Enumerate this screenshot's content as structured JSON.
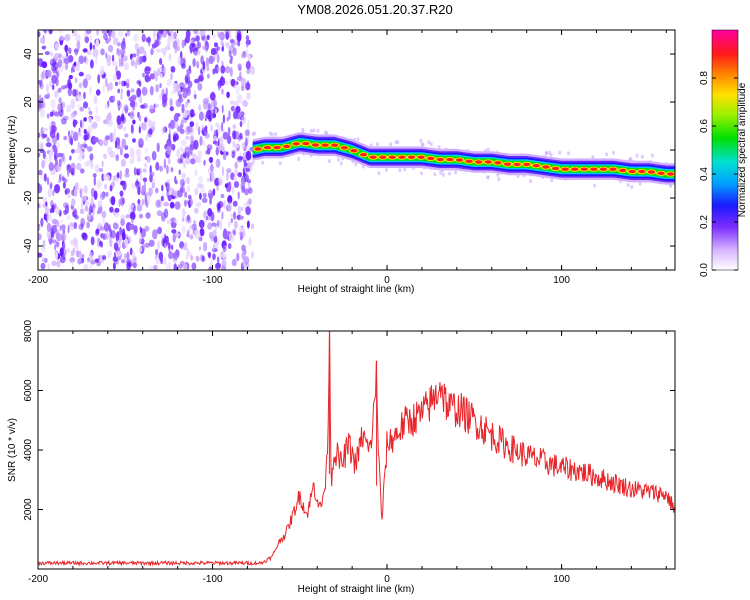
{
  "title": "YM08.2026.051.20.37.R20",
  "chart_data": [
    {
      "type": "heatmap",
      "name": "spectrogram",
      "xlabel": "Height of straight line (km)",
      "ylabel": "Frequency (Hz)",
      "xlim": [
        -200,
        165
      ],
      "ylim": [
        -50,
        50
      ],
      "xticks": [
        -200,
        -100,
        0,
        100
      ],
      "yticks": [
        -40,
        -20,
        0,
        20,
        40
      ],
      "noise_region": {
        "x_start": -200,
        "x_end": -77
      },
      "signal_track": {
        "x": [
          -77,
          -70,
          -60,
          -50,
          -40,
          -30,
          -20,
          -10,
          0,
          10,
          20,
          30,
          40,
          50,
          60,
          70,
          80,
          90,
          100,
          110,
          120,
          130,
          140,
          150,
          160,
          165
        ],
        "y": [
          0,
          1,
          1,
          3,
          2,
          2,
          0,
          -3,
          -3,
          -3,
          -3,
          -4,
          -4,
          -5,
          -5,
          -6,
          -6,
          -7,
          -8,
          -8,
          -8,
          -8,
          -9,
          -9,
          -10,
          -10
        ]
      },
      "colorbar": {
        "label": "Normalized spectral amplitude",
        "range": [
          0.0,
          1.0
        ],
        "ticks": [
          "0.0",
          "0.2",
          "0.4",
          "0.6",
          "0.8"
        ]
      }
    },
    {
      "type": "line",
      "name": "snr",
      "xlabel": "Height of straight line (km)",
      "ylabel": "SNR (10 * v/v)",
      "xlim": [
        -200,
        165
      ],
      "ylim": [
        0,
        8000
      ],
      "xticks": [
        -200,
        -100,
        0,
        100
      ],
      "yticks": [
        2000,
        4000,
        6000,
        8000
      ],
      "color": "#e8252a",
      "series": [
        {
          "name": "SNR",
          "x": [
            -200,
            -180,
            -160,
            -140,
            -120,
            -100,
            -90,
            -80,
            -72,
            -66,
            -62,
            -58,
            -54,
            -50,
            -46,
            -42,
            -38,
            -35,
            -34,
            -33,
            -32,
            -30,
            -26,
            -22,
            -18,
            -14,
            -10,
            -7,
            -6,
            -5,
            -4,
            -3,
            0,
            5,
            10,
            20,
            28,
            30,
            35,
            40,
            50,
            60,
            70,
            80,
            90,
            100,
            110,
            120,
            130,
            140,
            150,
            160,
            165
          ],
          "y": [
            200,
            200,
            200,
            200,
            200,
            200,
            200,
            200,
            200,
            400,
            900,
            1200,
            1800,
            2500,
            1800,
            2800,
            2000,
            3000,
            4500,
            8000,
            3000,
            4000,
            3500,
            4200,
            3500,
            4500,
            3900,
            5500,
            7000,
            4000,
            2800,
            1600,
            4200,
            4500,
            4900,
            5200,
            5800,
            6300,
            5400,
            5400,
            5000,
            4500,
            4100,
            3800,
            3600,
            3400,
            3300,
            3100,
            2900,
            2700,
            2600,
            2500,
            2000
          ]
        }
      ]
    }
  ]
}
